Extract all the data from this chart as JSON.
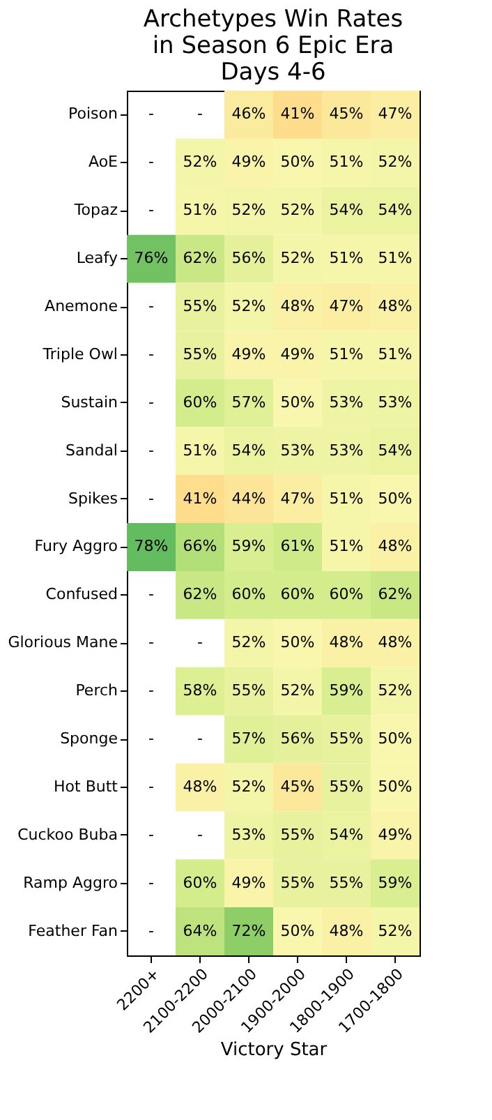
{
  "chart_data": {
    "type": "heatmap",
    "title": "Archetypes Win Rates\nin Season 6 Epic Era\nDays 4-6",
    "xlabel": "Victory Star",
    "categories": [
      "2200+",
      "2100-2200",
      "2000-2100",
      "1900-2000",
      "1800-1900",
      "1700-1800"
    ],
    "y_categories": [
      "Poison",
      "AoE",
      "Topaz",
      "Leafy",
      "Anemone",
      "Triple Owl",
      "Sustain",
      "Sandal",
      "Spikes",
      "Fury Aggro",
      "Confused",
      "Glorious Mane",
      "Perch",
      "Sponge",
      "Hot Butt",
      "Cuckoo Buba",
      "Ramp Aggro",
      "Feather Fan"
    ],
    "cells": [
      [
        null,
        null,
        46,
        41,
        45,
        47
      ],
      [
        null,
        52,
        49,
        50,
        51,
        52
      ],
      [
        null,
        51,
        52,
        52,
        54,
        54
      ],
      [
        76,
        62,
        56,
        52,
        51,
        51
      ],
      [
        null,
        55,
        52,
        48,
        47,
        48
      ],
      [
        null,
        55,
        49,
        49,
        51,
        51
      ],
      [
        null,
        60,
        57,
        50,
        53,
        53
      ],
      [
        null,
        51,
        54,
        53,
        53,
        54
      ],
      [
        null,
        41,
        44,
        47,
        51,
        50
      ],
      [
        78,
        66,
        59,
        61,
        51,
        48
      ],
      [
        null,
        62,
        60,
        60,
        60,
        62
      ],
      [
        null,
        null,
        52,
        50,
        48,
        48
      ],
      [
        null,
        58,
        55,
        52,
        59,
        52
      ],
      [
        null,
        null,
        57,
        56,
        55,
        50
      ],
      [
        null,
        48,
        52,
        45,
        55,
        50
      ],
      [
        null,
        null,
        53,
        55,
        54,
        49
      ],
      [
        null,
        60,
        49,
        55,
        55,
        59
      ],
      [
        null,
        64,
        72,
        50,
        48,
        52
      ]
    ],
    "cell_labels": [
      [
        "-",
        "-",
        "46%",
        "41%",
        "45%",
        "47%"
      ],
      [
        "-",
        "52%",
        "49%",
        "50%",
        "51%",
        "52%"
      ],
      [
        "-",
        "51%",
        "52%",
        "52%",
        "54%",
        "54%"
      ],
      [
        "76%",
        "62%",
        "56%",
        "52%",
        "51%",
        "51%"
      ],
      [
        "-",
        "55%",
        "52%",
        "48%",
        "47%",
        "48%"
      ],
      [
        "-",
        "55%",
        "49%",
        "49%",
        "51%",
        "51%"
      ],
      [
        "-",
        "60%",
        "57%",
        "50%",
        "53%",
        "53%"
      ],
      [
        "-",
        "51%",
        "54%",
        "53%",
        "53%",
        "54%"
      ],
      [
        "-",
        "41%",
        "44%",
        "47%",
        "51%",
        "50%"
      ],
      [
        "78%",
        "66%",
        "59%",
        "61%",
        "51%",
        "48%"
      ],
      [
        "-",
        "62%",
        "60%",
        "60%",
        "60%",
        "62%"
      ],
      [
        "-",
        "-",
        "52%",
        "50%",
        "48%",
        "48%"
      ],
      [
        "-",
        "58%",
        "55%",
        "52%",
        "59%",
        "52%"
      ],
      [
        "-",
        "-",
        "57%",
        "56%",
        "55%",
        "50%"
      ],
      [
        "-",
        "48%",
        "52%",
        "45%",
        "55%",
        "50%"
      ],
      [
        "-",
        "-",
        "53%",
        "55%",
        "54%",
        "49%"
      ],
      [
        "-",
        "60%",
        "49%",
        "55%",
        "55%",
        "59%"
      ],
      [
        "-",
        "64%",
        "72%",
        "50%",
        "48%",
        "52%"
      ]
    ],
    "grid": false
  }
}
